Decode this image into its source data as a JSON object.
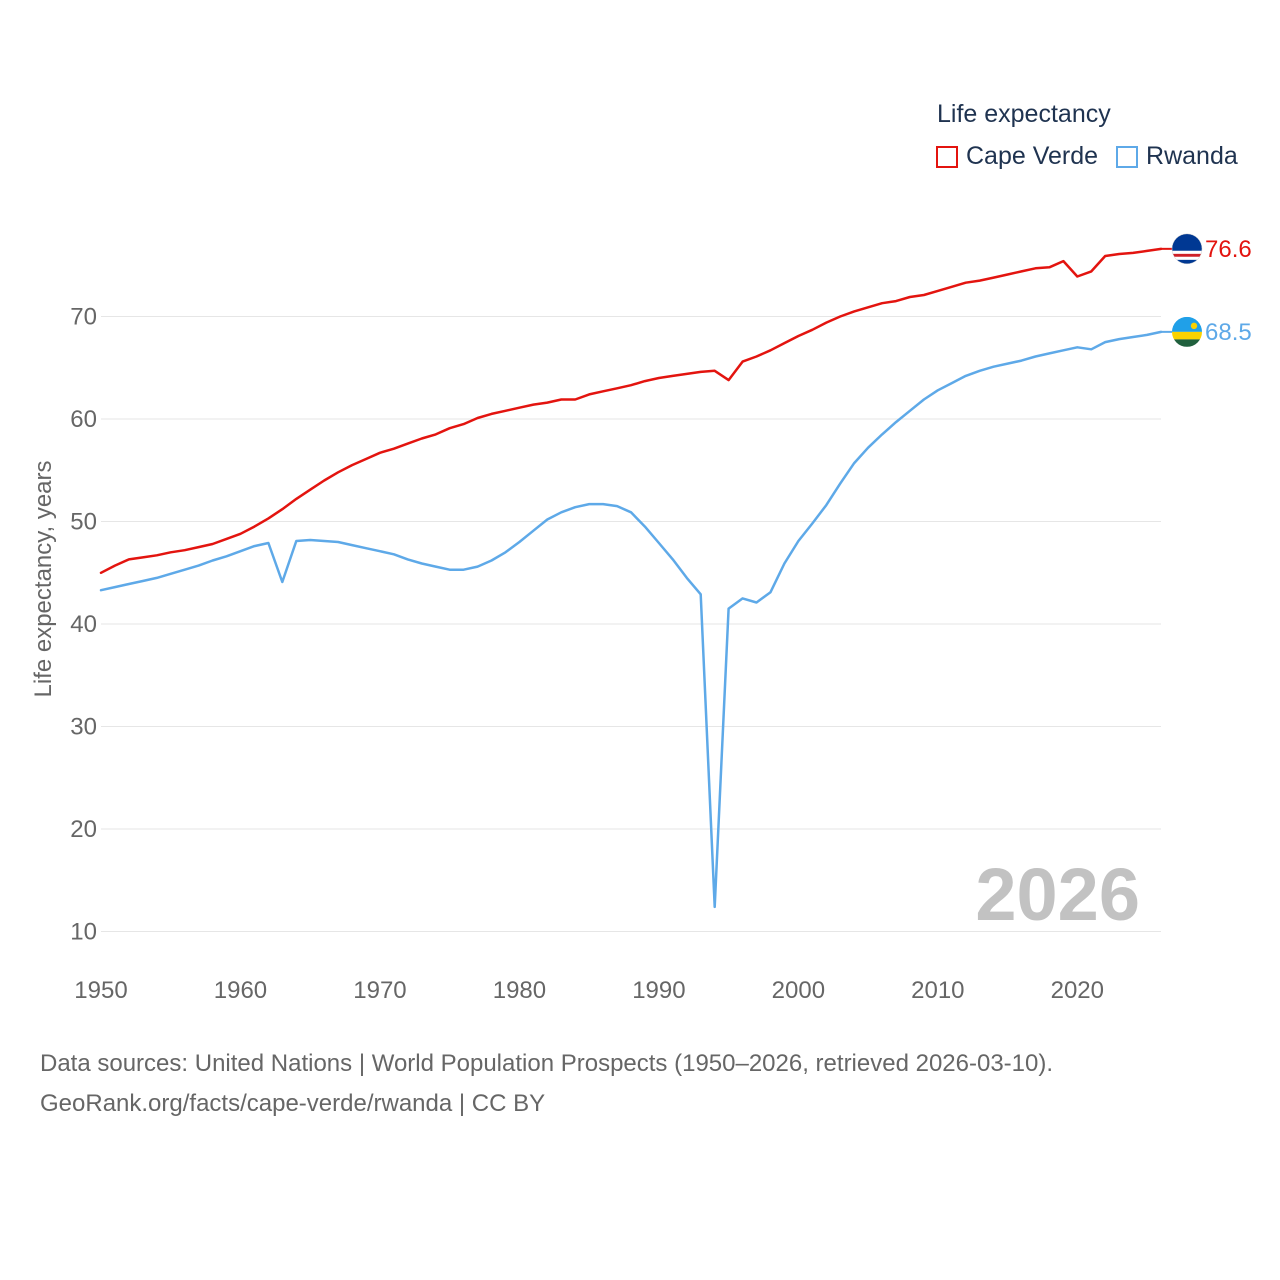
{
  "chart_data": {
    "type": "line",
    "legend_title": "Life expectancy",
    "ylabel": "Life expectancy, years",
    "xlabel": "",
    "ylim": [
      10,
      78
    ],
    "xlim": [
      1950,
      2026
    ],
    "yticks": [
      10,
      20,
      30,
      40,
      50,
      60,
      70
    ],
    "xticks": [
      1950,
      1960,
      1970,
      1980,
      1990,
      2000,
      2010,
      2020
    ],
    "current_year": "2026",
    "colors": {
      "cape_verde": "#e3140f",
      "rwanda": "#5ea9e8",
      "grid": "#e6e6e6"
    },
    "x": [
      1950,
      1951,
      1952,
      1953,
      1954,
      1955,
      1956,
      1957,
      1958,
      1959,
      1960,
      1961,
      1962,
      1963,
      1964,
      1965,
      1966,
      1967,
      1968,
      1969,
      1970,
      1971,
      1972,
      1973,
      1974,
      1975,
      1976,
      1977,
      1978,
      1979,
      1980,
      1981,
      1982,
      1983,
      1984,
      1985,
      1986,
      1987,
      1988,
      1989,
      1990,
      1991,
      1992,
      1993,
      1994,
      1995,
      1996,
      1997,
      1998,
      1999,
      2000,
      2001,
      2002,
      2003,
      2004,
      2005,
      2006,
      2007,
      2008,
      2009,
      2010,
      2011,
      2012,
      2013,
      2014,
      2015,
      2016,
      2017,
      2018,
      2019,
      2020,
      2021,
      2022,
      2023,
      2024,
      2025,
      2026
    ],
    "series": [
      {
        "name": "Cape Verde",
        "color": "#e3140f",
        "end_label": "76.6",
        "values": [
          45.0,
          45.7,
          46.3,
          46.5,
          46.7,
          47.0,
          47.2,
          47.5,
          47.8,
          48.3,
          48.8,
          49.5,
          50.3,
          51.2,
          52.2,
          53.1,
          54.0,
          54.8,
          55.5,
          56.1,
          56.7,
          57.1,
          57.6,
          58.1,
          58.5,
          59.1,
          59.5,
          60.1,
          60.5,
          60.8,
          61.1,
          61.4,
          61.6,
          61.9,
          61.9,
          62.4,
          62.7,
          63.0,
          63.3,
          63.7,
          64.0,
          64.2,
          64.4,
          64.6,
          64.7,
          63.8,
          65.6,
          66.1,
          66.7,
          67.4,
          68.1,
          68.7,
          69.4,
          70.0,
          70.5,
          70.9,
          71.3,
          71.5,
          71.9,
          72.1,
          72.5,
          72.9,
          73.3,
          73.5,
          73.8,
          74.1,
          74.4,
          74.7,
          74.8,
          75.4,
          73.9,
          74.4,
          75.9,
          76.1,
          76.2,
          76.4,
          76.6
        ]
      },
      {
        "name": "Rwanda",
        "color": "#5ea9e8",
        "end_label": "68.5",
        "values": [
          43.3,
          43.6,
          43.9,
          44.2,
          44.5,
          44.9,
          45.3,
          45.7,
          46.2,
          46.6,
          47.1,
          47.6,
          47.9,
          44.1,
          48.1,
          48.2,
          48.1,
          48.0,
          47.7,
          47.4,
          47.1,
          46.8,
          46.3,
          45.9,
          45.6,
          45.3,
          45.3,
          45.6,
          46.2,
          47.0,
          48.0,
          49.1,
          50.2,
          50.9,
          51.4,
          51.7,
          51.7,
          51.5,
          50.9,
          49.5,
          47.9,
          46.3,
          44.5,
          42.9,
          12.4,
          41.5,
          42.5,
          42.1,
          43.1,
          45.9,
          48.1,
          49.8,
          51.6,
          53.7,
          55.7,
          57.2,
          58.5,
          59.7,
          60.8,
          61.9,
          62.8,
          63.5,
          64.2,
          64.7,
          65.1,
          65.4,
          65.7,
          66.1,
          66.4,
          66.7,
          67.0,
          66.8,
          67.5,
          67.8,
          68.0,
          68.2,
          68.5
        ]
      }
    ]
  },
  "sources": {
    "line1": "Data sources: United Nations | World Population Prospects (1950–2026, retrieved 2026-03-10).",
    "line2": "GeoRank.org/facts/cape-verde/rwanda | CC BY"
  }
}
